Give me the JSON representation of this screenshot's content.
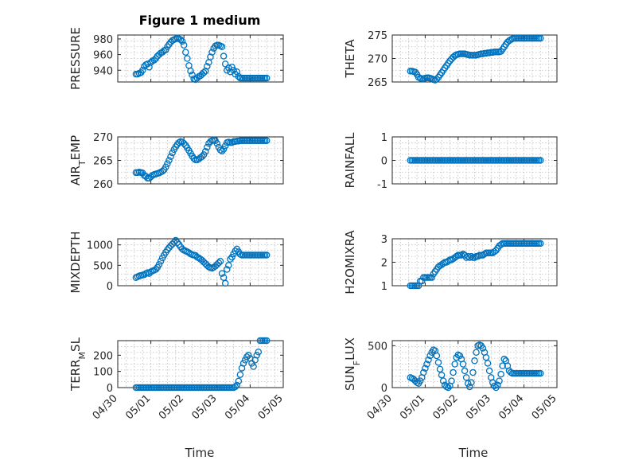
{
  "chart_data": {
    "type": "scatter",
    "title": "Figure 1 medium",
    "marker_color": "#0072BD",
    "marker": "circle-open",
    "grid": true,
    "x_ticks": [
      "04/30",
      "05/01",
      "05/02",
      "05/03",
      "05/04",
      "05/05"
    ],
    "xlabel": "Time",
    "x_start": "2017-05-00",
    "panels": [
      {
        "ylabel": "PRESSURE",
        "ylim": [
          925,
          985
        ],
        "yticks": [
          940,
          960,
          980
        ],
        "x": [
          0.55,
          0.6,
          0.65,
          0.7,
          0.75,
          0.8,
          0.85,
          0.9,
          0.95,
          1.0,
          1.05,
          1.1,
          1.15,
          1.2,
          1.25,
          1.3,
          1.35,
          1.4,
          1.45,
          1.5,
          1.55,
          1.6,
          1.65,
          1.7,
          1.75,
          1.8,
          1.85,
          1.9,
          1.95,
          2.0,
          2.05,
          2.1,
          2.15,
          2.2,
          2.25,
          2.3,
          2.35,
          2.4,
          2.45,
          2.5,
          2.55,
          2.6,
          2.65,
          2.7,
          2.75,
          2.8,
          2.85,
          2.9,
          2.95,
          3.0,
          3.05,
          3.1,
          3.15,
          3.2,
          3.25,
          3.3,
          3.35,
          3.4,
          3.45,
          3.5,
          3.55,
          3.6,
          3.65,
          3.7,
          3.75,
          3.8,
          3.85,
          3.9,
          3.95,
          4.0,
          4.05,
          4.1,
          4.15,
          4.2,
          4.25,
          4.3,
          4.35,
          4.4,
          4.45,
          4.5
        ],
        "y": [
          935,
          935,
          936,
          937,
          940,
          945,
          947,
          948,
          944,
          950,
          952,
          953,
          955,
          958,
          960,
          962,
          963,
          965,
          966,
          970,
          973,
          976,
          978,
          979,
          980,
          981,
          980,
          979,
          977,
          972,
          963,
          955,
          946,
          939,
          934,
          929,
          928,
          930,
          932,
          933,
          935,
          937,
          939,
          945,
          950,
          957,
          963,
          968,
          971,
          972,
          972,
          971,
          970,
          958,
          948,
          940,
          943,
          938,
          944,
          940,
          935,
          938,
          932,
          930,
          930,
          930,
          930,
          930,
          930,
          930,
          930,
          930,
          930,
          930,
          930,
          930,
          930,
          930,
          930,
          930
        ]
      },
      {
        "ylabel": "THETA",
        "ylim": [
          265,
          275
        ],
        "yticks": [
          265,
          270,
          275
        ],
        "x": [
          0.55,
          0.6,
          0.65,
          0.7,
          0.75,
          0.8,
          0.85,
          0.9,
          0.95,
          1.0,
          1.05,
          1.1,
          1.15,
          1.2,
          1.25,
          1.3,
          1.35,
          1.4,
          1.45,
          1.5,
          1.55,
          1.6,
          1.65,
          1.7,
          1.75,
          1.8,
          1.85,
          1.9,
          1.95,
          2.0,
          2.05,
          2.1,
          2.15,
          2.2,
          2.25,
          2.3,
          2.35,
          2.4,
          2.45,
          2.5,
          2.55,
          2.6,
          2.65,
          2.7,
          2.75,
          2.8,
          2.85,
          2.9,
          2.95,
          3.0,
          3.05,
          3.1,
          3.15,
          3.2,
          3.25,
          3.3,
          3.35,
          3.4,
          3.45,
          3.5,
          3.55,
          3.6,
          3.65,
          3.7,
          3.75,
          3.8,
          3.85,
          3.9,
          3.95,
          4.0,
          4.05,
          4.1,
          4.15,
          4.2,
          4.25,
          4.3,
          4.35,
          4.4,
          4.45,
          4.5
        ],
        "y": [
          267.3,
          267.3,
          267.2,
          267.1,
          266.6,
          266.0,
          265.8,
          265.7,
          265.7,
          265.8,
          265.9,
          265.9,
          265.8,
          265.7,
          265.5,
          265.4,
          265.6,
          266.0,
          266.5,
          267.0,
          267.5,
          268.0,
          268.5,
          269.0,
          269.5,
          269.9,
          270.3,
          270.6,
          270.8,
          270.9,
          271.0,
          271.0,
          271.0,
          271.0,
          270.9,
          270.8,
          270.7,
          270.7,
          270.7,
          270.7,
          270.7,
          270.8,
          270.9,
          271.0,
          271.0,
          271.1,
          271.1,
          271.2,
          271.2,
          271.3,
          271.3,
          271.4,
          271.4,
          271.4,
          271.4,
          271.5,
          272.0,
          272.5,
          273.0,
          273.5,
          273.8,
          274.0,
          274.2,
          274.3,
          274.3,
          274.3,
          274.3,
          274.3,
          274.3,
          274.3,
          274.3,
          274.3,
          274.3,
          274.3,
          274.3,
          274.3,
          274.3,
          274.3,
          274.3,
          274.3
        ]
      },
      {
        "ylabel": "AIR_TEMP",
        "ylim": [
          260,
          270
        ],
        "yticks": [
          260,
          265,
          270
        ],
        "x": [
          0.55,
          0.6,
          0.65,
          0.7,
          0.75,
          0.8,
          0.85,
          0.9,
          0.95,
          1.0,
          1.05,
          1.1,
          1.15,
          1.2,
          1.25,
          1.3,
          1.35,
          1.4,
          1.45,
          1.5,
          1.55,
          1.6,
          1.65,
          1.7,
          1.75,
          1.8,
          1.85,
          1.9,
          1.95,
          2.0,
          2.05,
          2.1,
          2.15,
          2.2,
          2.25,
          2.3,
          2.35,
          2.4,
          2.45,
          2.5,
          2.55,
          2.6,
          2.65,
          2.7,
          2.75,
          2.8,
          2.85,
          2.9,
          2.95,
          3.0,
          3.05,
          3.1,
          3.15,
          3.2,
          3.25,
          3.3,
          3.35,
          3.4,
          3.45,
          3.5,
          3.55,
          3.6,
          3.65,
          3.7,
          3.75,
          3.8,
          3.85,
          3.9,
          3.95,
          4.0,
          4.05,
          4.1,
          4.15,
          4.2,
          4.25,
          4.3,
          4.35,
          4.4,
          4.45,
          4.5
        ],
        "y": [
          262.4,
          262.4,
          262.5,
          262.4,
          262.3,
          261.8,
          261.6,
          261.2,
          261.2,
          261.5,
          261.8,
          262.0,
          262.1,
          262.2,
          262.3,
          262.5,
          262.7,
          263.0,
          263.6,
          264.3,
          265.0,
          265.8,
          266.6,
          267.3,
          267.9,
          268.4,
          268.8,
          269.0,
          268.9,
          268.6,
          268.2,
          267.7,
          267.1,
          266.5,
          265.9,
          265.4,
          265.1,
          265.1,
          265.3,
          265.6,
          265.8,
          266.2,
          266.9,
          267.8,
          268.6,
          269.0,
          269.2,
          269.3,
          269.2,
          268.6,
          267.8,
          267.2,
          267.0,
          267.4,
          268.1,
          268.8,
          268.9,
          268.8,
          268.8,
          269.0,
          269.0,
          269.1,
          269.1,
          269.2,
          269.2,
          269.2,
          269.2,
          269.2,
          269.2,
          269.2,
          269.2,
          269.2,
          269.2,
          269.2,
          269.2,
          269.2,
          269.2,
          269.2,
          269.2,
          269.2
        ]
      },
      {
        "ylabel": "RAINFALL",
        "ylim": [
          -1,
          1
        ],
        "yticks": [
          -1,
          0,
          1
        ],
        "x_range": [
          0.55,
          4.5
        ],
        "y_constant": 0
      },
      {
        "ylabel": "MIXDEPTH",
        "ylim": [
          0,
          1150
        ],
        "yticks": [
          0,
          500,
          1000
        ],
        "x": [
          0.55,
          0.6,
          0.65,
          0.7,
          0.75,
          0.8,
          0.85,
          0.9,
          0.95,
          1.0,
          1.05,
          1.1,
          1.15,
          1.2,
          1.25,
          1.3,
          1.35,
          1.4,
          1.45,
          1.5,
          1.55,
          1.6,
          1.65,
          1.7,
          1.75,
          1.8,
          1.85,
          1.9,
          1.95,
          2.0,
          2.05,
          2.1,
          2.15,
          2.2,
          2.25,
          2.3,
          2.35,
          2.4,
          2.45,
          2.5,
          2.55,
          2.6,
          2.65,
          2.7,
          2.75,
          2.8,
          2.85,
          2.9,
          2.95,
          3.0,
          3.05,
          3.1,
          3.15,
          3.2,
          3.25,
          3.3,
          3.35,
          3.4,
          3.45,
          3.5,
          3.55,
          3.6,
          3.65,
          3.7,
          3.75,
          3.8,
          3.85,
          3.9,
          3.95,
          4.0,
          4.05,
          4.1,
          4.15,
          4.2,
          4.25,
          4.3,
          4.35,
          4.4,
          4.45,
          4.5
        ],
        "y": [
          200,
          220,
          240,
          250,
          260,
          270,
          300,
          320,
          300,
          340,
          360,
          380,
          400,
          450,
          520,
          600,
          680,
          750,
          820,
          880,
          930,
          980,
          1020,
          1060,
          1110,
          1060,
          1010,
          950,
          900,
          870,
          850,
          830,
          810,
          780,
          760,
          750,
          740,
          700,
          680,
          650,
          620,
          580,
          540,
          500,
          460,
          440,
          430,
          450,
          480,
          520,
          560,
          600,
          300,
          200,
          60,
          400,
          500,
          650,
          700,
          780,
          850,
          900,
          830,
          770,
          750,
          750,
          750,
          750,
          750,
          750,
          750,
          750,
          750,
          750,
          750,
          750,
          750,
          750,
          750,
          750
        ]
      },
      {
        "ylabel": "H2OMIXRA",
        "ylim": [
          1,
          3
        ],
        "yticks": [
          1,
          2,
          3
        ],
        "x": [
          0.55,
          0.6,
          0.65,
          0.7,
          0.75,
          0.8,
          0.85,
          0.9,
          0.95,
          1.0,
          1.05,
          1.1,
          1.15,
          1.2,
          1.25,
          1.3,
          1.35,
          1.4,
          1.45,
          1.5,
          1.55,
          1.6,
          1.65,
          1.7,
          1.75,
          1.8,
          1.85,
          1.9,
          1.95,
          2.0,
          2.05,
          2.1,
          2.15,
          2.2,
          2.25,
          2.3,
          2.35,
          2.4,
          2.45,
          2.5,
          2.55,
          2.6,
          2.65,
          2.7,
          2.75,
          2.8,
          2.85,
          2.9,
          2.95,
          3.0,
          3.05,
          3.1,
          3.15,
          3.2,
          3.25,
          3.3,
          3.35,
          3.4,
          3.45,
          3.5,
          3.55,
          3.6,
          3.65,
          3.7,
          3.75,
          3.8,
          3.85,
          3.9,
          3.95,
          4.0,
          4.05,
          4.1,
          4.15,
          4.2,
          4.25,
          4.3,
          4.35,
          4.4,
          4.45,
          4.5
        ],
        "y": [
          1.0,
          1.0,
          1.0,
          1.0,
          1.0,
          1.0,
          1.2,
          1.2,
          1.35,
          1.35,
          1.35,
          1.35,
          1.35,
          1.35,
          1.5,
          1.6,
          1.7,
          1.8,
          1.85,
          1.9,
          1.95,
          2.0,
          2.0,
          2.05,
          2.1,
          2.1,
          2.15,
          2.2,
          2.25,
          2.3,
          2.3,
          2.3,
          2.35,
          2.3,
          2.2,
          2.25,
          2.2,
          2.25,
          2.2,
          2.2,
          2.25,
          2.25,
          2.3,
          2.3,
          2.3,
          2.35,
          2.4,
          2.4,
          2.4,
          2.4,
          2.4,
          2.45,
          2.5,
          2.6,
          2.7,
          2.75,
          2.8,
          2.8,
          2.8,
          2.8,
          2.8,
          2.8,
          2.8,
          2.8,
          2.8,
          2.8,
          2.8,
          2.8,
          2.8,
          2.8,
          2.8,
          2.8,
          2.8,
          2.8,
          2.8,
          2.8,
          2.8,
          2.8,
          2.8,
          2.8
        ]
      },
      {
        "ylabel": "TERR_MSL",
        "ylim": [
          0,
          290
        ],
        "yticks": [
          0,
          100,
          200
        ],
        "x": [
          0.55,
          0.75,
          1.0,
          1.25,
          1.5,
          1.75,
          2.0,
          2.25,
          2.5,
          2.75,
          3.0,
          3.25,
          3.5,
          3.55,
          3.6,
          3.65,
          3.7,
          3.75,
          3.8,
          3.85,
          3.9,
          3.95,
          4.0,
          4.05,
          4.1,
          4.15,
          4.2,
          4.25,
          4.3,
          4.35,
          4.4,
          4.45,
          4.5
        ],
        "y": [
          0,
          0,
          0,
          0,
          0,
          0,
          0,
          0,
          0,
          0,
          0,
          0,
          0,
          5,
          15,
          40,
          80,
          120,
          150,
          170,
          190,
          200,
          180,
          150,
          130,
          170,
          200,
          220,
          290,
          290,
          290,
          290,
          290
        ]
      },
      {
        "ylabel": "SUN_FLUX",
        "ylim": [
          0,
          560
        ],
        "yticks": [
          0,
          500
        ],
        "x": [
          0.55,
          0.6,
          0.65,
          0.7,
          0.75,
          0.8,
          0.85,
          0.9,
          0.95,
          1.0,
          1.05,
          1.1,
          1.15,
          1.2,
          1.25,
          1.3,
          1.35,
          1.4,
          1.45,
          1.5,
          1.55,
          1.6,
          1.65,
          1.7,
          1.75,
          1.8,
          1.85,
          1.9,
          1.95,
          2.0,
          2.05,
          2.1,
          2.15,
          2.2,
          2.25,
          2.3,
          2.35,
          2.4,
          2.45,
          2.5,
          2.55,
          2.6,
          2.65,
          2.7,
          2.75,
          2.8,
          2.85,
          2.9,
          2.95,
          3.0,
          3.05,
          3.1,
          3.15,
          3.2,
          3.25,
          3.3,
          3.35,
          3.4,
          3.45,
          3.5,
          3.55,
          3.6,
          3.65,
          3.7,
          3.75,
          3.8,
          3.85,
          3.9,
          3.95,
          4.0,
          4.05,
          4.1,
          4.15,
          4.2,
          4.25,
          4.3,
          4.35,
          4.4,
          4.45,
          4.5
        ],
        "y": [
          120,
          110,
          100,
          80,
          60,
          50,
          80,
          120,
          180,
          230,
          280,
          330,
          380,
          420,
          450,
          440,
          380,
          300,
          220,
          150,
          80,
          30,
          10,
          0,
          20,
          80,
          180,
          280,
          360,
          390,
          380,
          340,
          280,
          200,
          120,
          50,
          10,
          60,
          180,
          320,
          420,
          500,
          510,
          500,
          470,
          420,
          360,
          290,
          200,
          120,
          60,
          20,
          0,
          30,
          80,
          160,
          260,
          340,
          320,
          260,
          200,
          180,
          170,
          170,
          170,
          170,
          170,
          170,
          170,
          170,
          170,
          170,
          170,
          170,
          170,
          170,
          170,
          170,
          170,
          170
        ]
      }
    ]
  }
}
